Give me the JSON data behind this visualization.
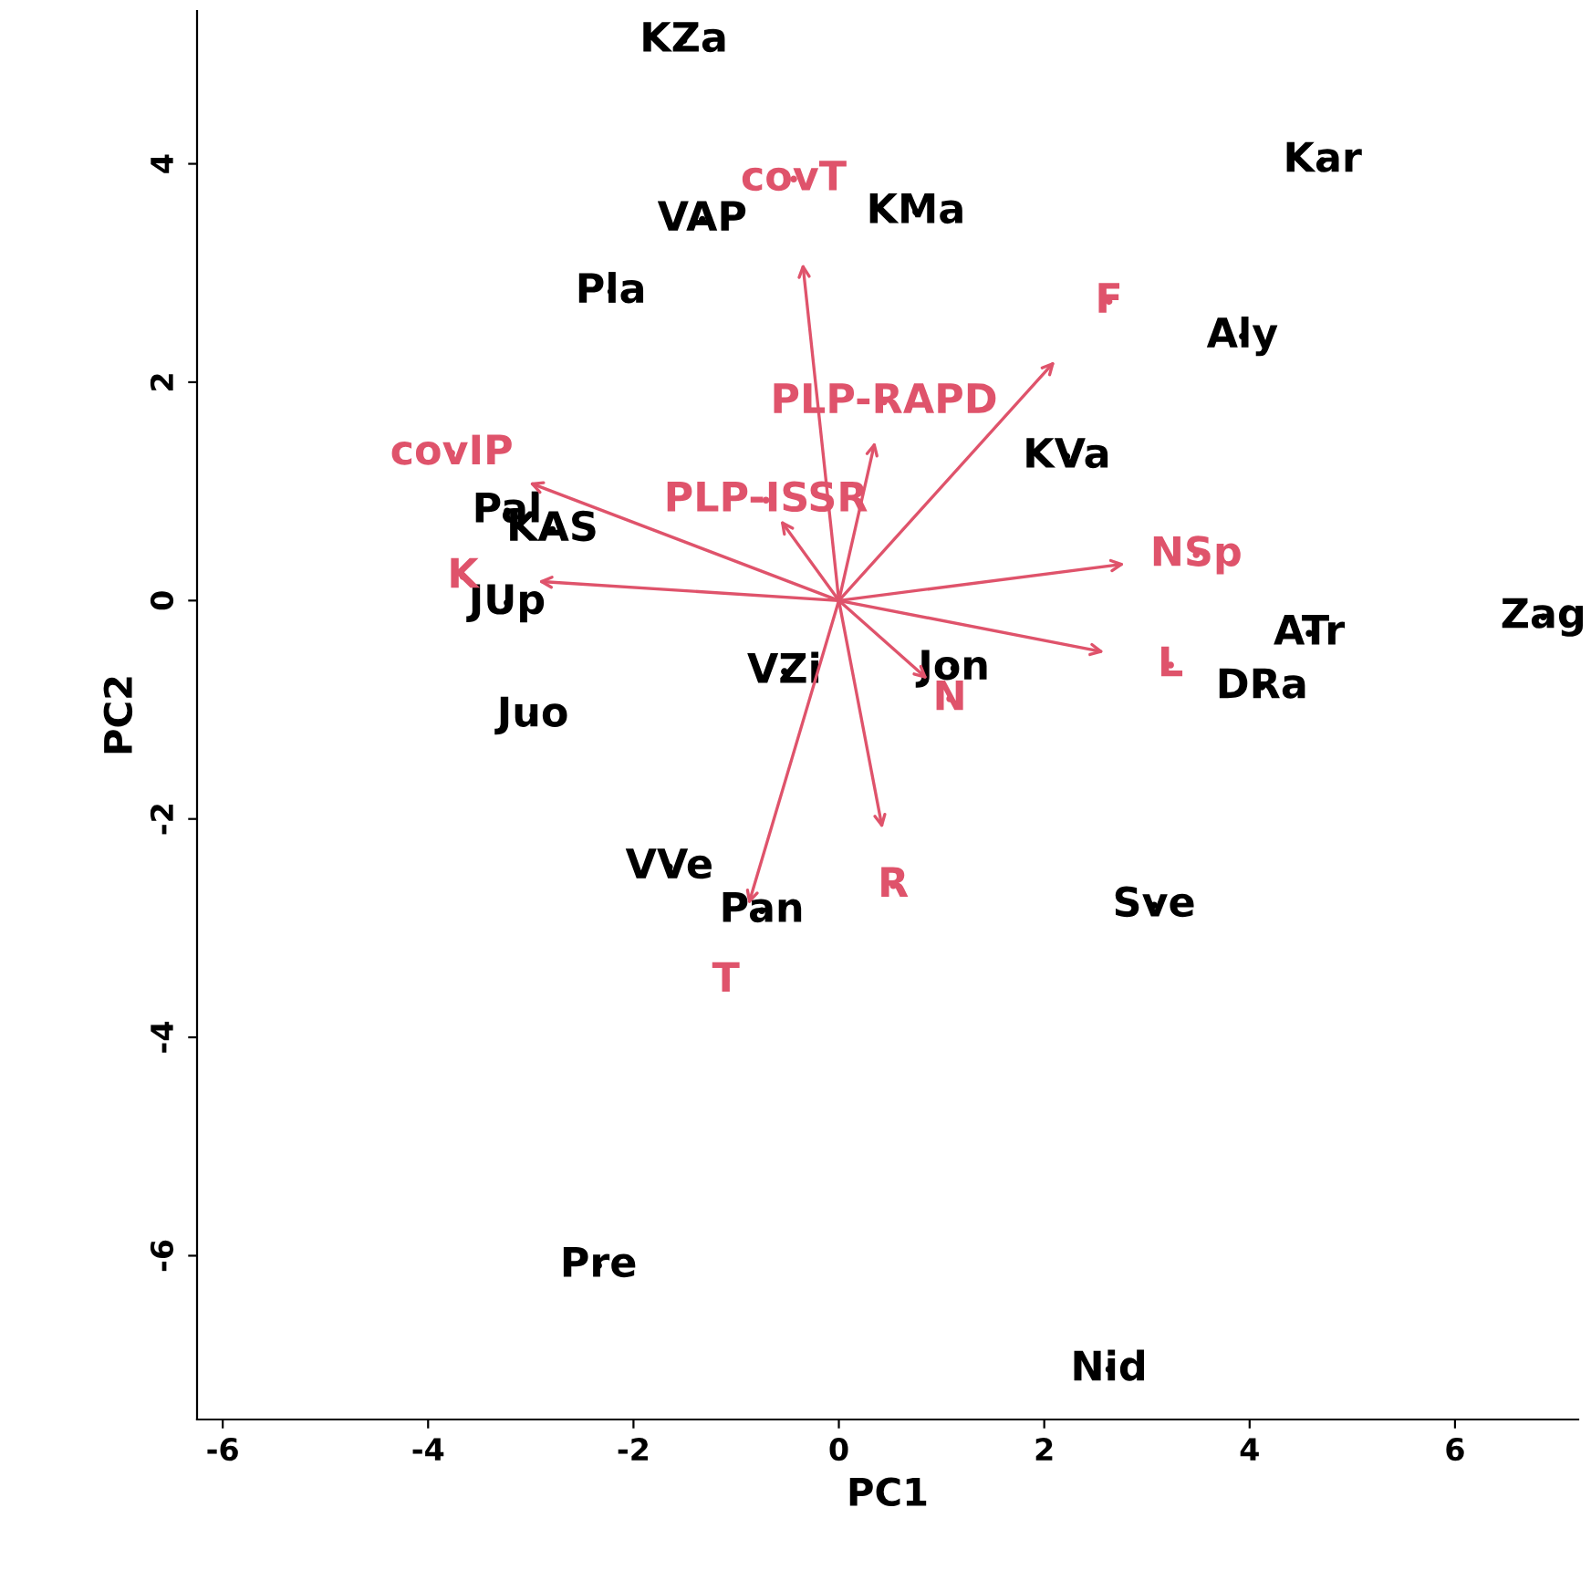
{
  "chart_data": {
    "type": "scatter",
    "xlabel": "PC1",
    "ylabel": "PC2",
    "marker": "none",
    "grid": false,
    "legend": false,
    "xlim": [
      -6.25,
      7.2
    ],
    "ylim": [
      -7.5,
      5.4
    ],
    "xticks": [
      -6,
      -4,
      -2,
      0,
      2,
      4,
      6
    ],
    "yticks": [
      -6,
      -4,
      -2,
      0,
      2,
      4
    ],
    "series": [
      {
        "color": "#000000",
        "x": [
          -1.51,
          4.71,
          -1.33,
          0.75,
          -2.22,
          3.93,
          2.22,
          -3.23,
          -2.79,
          -3.23,
          6.86,
          4.58,
          4.12,
          1.12,
          -0.53,
          -2.98,
          -1.65,
          -0.75,
          3.07,
          -2.34,
          2.63
        ],
        "values": [
          5.13,
          4.03,
          3.49,
          3.56,
          2.83,
          2.42,
          1.32,
          0.82,
          0.65,
          -0.02,
          -0.15,
          -0.3,
          -0.79,
          -0.62,
          -0.65,
          -1.05,
          -2.44,
          -2.84,
          -2.79,
          -6.09,
          -7.04
        ],
        "value_labels": [
          "KZa",
          "Kar",
          "VAP",
          "KMa",
          "Pla",
          "Aly",
          "KVa",
          "Pal",
          "KAS",
          "JUp",
          "Zag",
          "ATr",
          "DRa",
          "Jon",
          "VZi",
          "Juo",
          "VVe",
          "Pan",
          "Sve",
          "Pre",
          "Nid"
        ]
      },
      {
        "color": "#df536b",
        "x": [
          -0.44,
          2.63,
          0.44,
          -3.77,
          -0.71,
          3.48,
          -3.66,
          3.23,
          1.08,
          0.53,
          -1.1
        ],
        "values": [
          3.86,
          2.74,
          1.82,
          1.35,
          0.92,
          0.42,
          0.22,
          -0.59,
          -0.9,
          -2.61,
          -3.48
        ],
        "value_labels": [
          "covT",
          "F",
          "PLP-RAPD",
          "covIP",
          "PLP-ISSR",
          "NSp",
          "K",
          "L",
          "N",
          "R",
          "T"
        ]
      }
    ]
  }
}
